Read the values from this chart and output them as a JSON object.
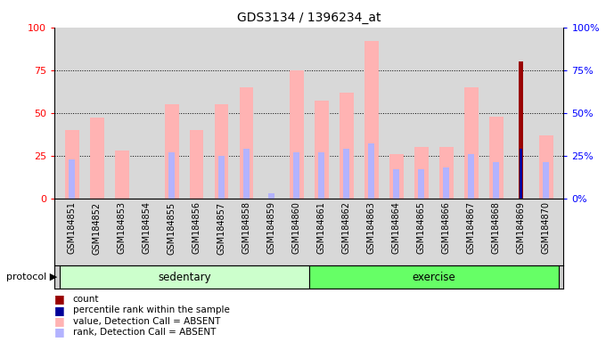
{
  "title": "GDS3134 / 1396234_at",
  "samples": [
    "GSM184851",
    "GSM184852",
    "GSM184853",
    "GSM184854",
    "GSM184855",
    "GSM184856",
    "GSM184857",
    "GSM184858",
    "GSM184859",
    "GSM184860",
    "GSM184861",
    "GSM184862",
    "GSM184863",
    "GSM184864",
    "GSM184865",
    "GSM184866",
    "GSM184867",
    "GSM184868",
    "GSM184869",
    "GSM184870"
  ],
  "value_absent": [
    40,
    47,
    28,
    0,
    55,
    40,
    55,
    65,
    0,
    75,
    57,
    62,
    92,
    26,
    30,
    30,
    65,
    48,
    0,
    37
  ],
  "rank_absent": [
    23,
    0,
    0,
    0,
    27,
    0,
    25,
    29,
    3,
    27,
    27,
    29,
    32,
    17,
    17,
    18,
    26,
    21,
    0,
    21
  ],
  "count_bar": [
    0,
    0,
    0,
    0,
    0,
    0,
    0,
    0,
    0,
    0,
    0,
    0,
    0,
    0,
    0,
    0,
    0,
    0,
    80,
    0
  ],
  "percentile_bar": [
    0,
    0,
    0,
    0,
    0,
    0,
    0,
    0,
    0,
    0,
    0,
    0,
    0,
    0,
    0,
    0,
    0,
    0,
    29,
    0
  ],
  "sedentary_count": 10,
  "exercise_count": 10,
  "protocol_label_sedentary": "sedentary",
  "protocol_label_exercise": "exercise",
  "color_value_absent": "#ffb3b3",
  "color_rank_absent": "#b3b3ff",
  "color_count": "#990000",
  "color_percentile": "#000099",
  "color_sedentary_light": "#ccffcc",
  "color_exercise_light": "#66ff66",
  "ylim": [
    0,
    100
  ],
  "yticks": [
    0,
    25,
    50,
    75,
    100
  ],
  "grid_lines": [
    25,
    50,
    75
  ],
  "bar_width": 0.55,
  "rank_bar_width": 0.25,
  "count_bar_width": 0.18,
  "percentile_bar_width": 0.1,
  "background_color": "#ffffff",
  "chart_bg": "#d8d8d8",
  "legend_items": [
    {
      "color": "#990000",
      "label": "count"
    },
    {
      "color": "#000099",
      "label": "percentile rank within the sample"
    },
    {
      "color": "#ffb3b3",
      "label": "value, Detection Call = ABSENT"
    },
    {
      "color": "#b3b3ff",
      "label": "rank, Detection Call = ABSENT"
    }
  ]
}
